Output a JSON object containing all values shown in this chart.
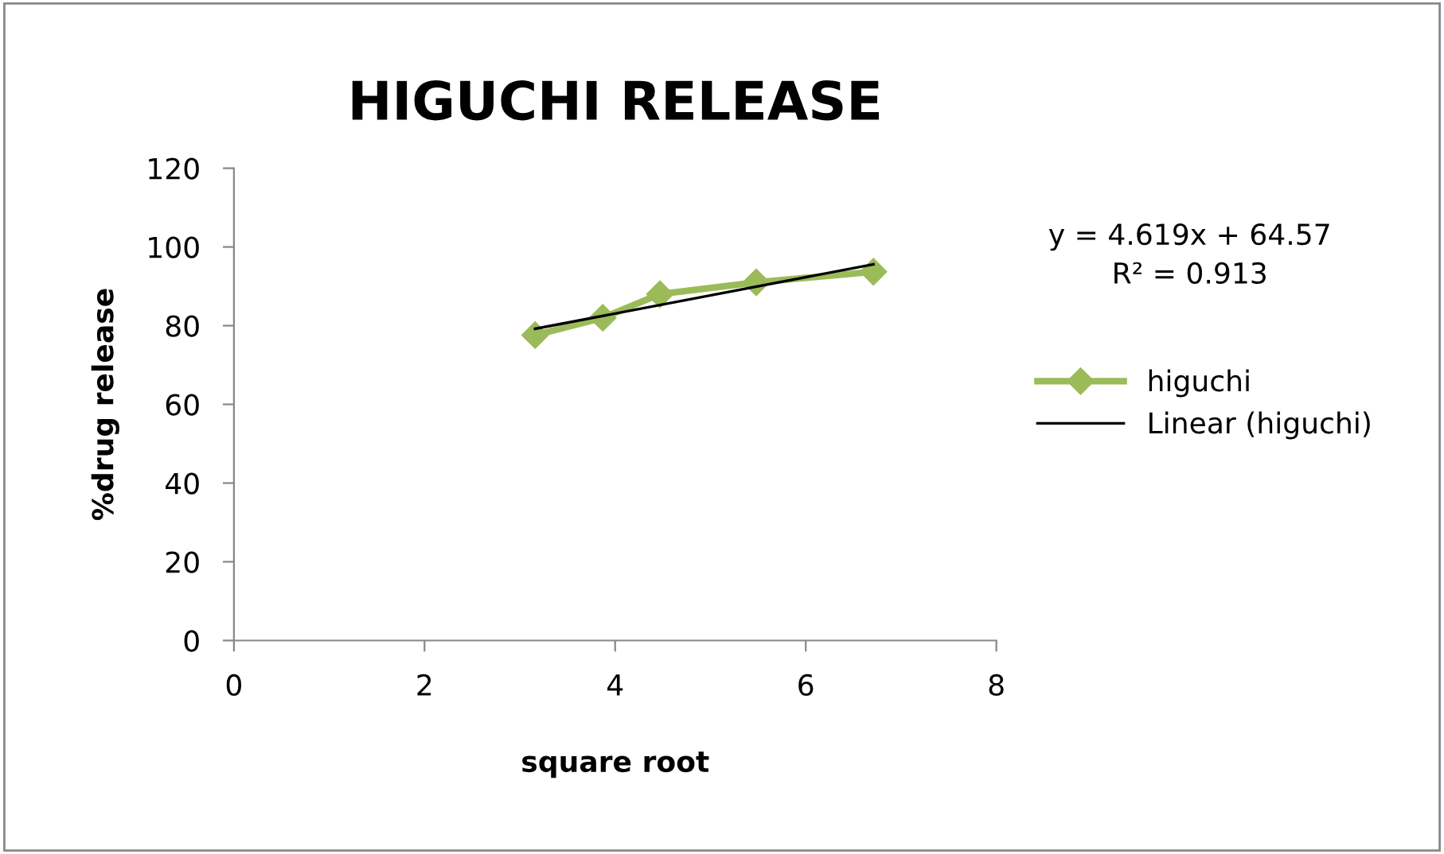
{
  "chart_data": {
    "type": "line",
    "title": "HIGUCHI RELEASE",
    "xlabel": "square root",
    "ylabel": "%drug release",
    "xlim": [
      0,
      8
    ],
    "xticks": [
      0,
      2,
      4,
      6,
      8
    ],
    "ylim": [
      0,
      120
    ],
    "yticks": [
      0,
      20,
      40,
      60,
      80,
      100,
      120
    ],
    "grid": false,
    "legend": "right",
    "marker": "diamond",
    "line_style": "solid",
    "series": [
      {
        "name": "higuchi",
        "color": "#9bbb59",
        "x": [
          3.16,
          3.87,
          4.47,
          5.48,
          6.71
        ],
        "values": [
          77.6,
          82,
          88,
          91,
          93.7
        ]
      },
      {
        "name": "Linear (higuchi)",
        "type": "line",
        "marker": "none",
        "color": "#000000",
        "x": [
          3.16,
          6.71
        ],
        "values": [
          79.2,
          95.6
        ]
      }
    ],
    "annotations": [
      "y = 4.619x + 64.57\nR² = 0.913"
    ]
  }
}
